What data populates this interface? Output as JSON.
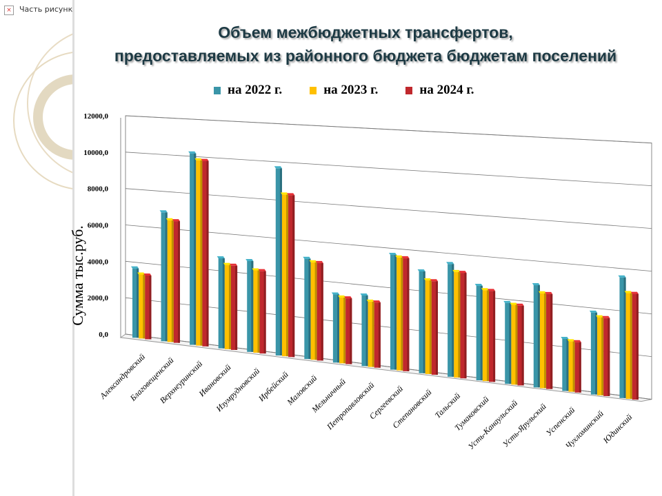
{
  "left_panel": {
    "broken_image_text": "Часть рисунка с",
    "broken_icon": "broken-image-icon"
  },
  "chart_data": {
    "type": "bar",
    "title_line1": "Объем межбюджетных трансфертов,",
    "title_line2": "предоставляемых из районного бюджета  бюджетам поселений",
    "ylabel": "Сумма  тыс.руб.",
    "xlabel": "",
    "ylim": [
      0,
      12000
    ],
    "yticks": [
      "0,0",
      "2000,0",
      "4000,0",
      "6000,0",
      "8000,0",
      "10000,0",
      "12000,0"
    ],
    "grid": true,
    "legend_position": "top",
    "categories": [
      "Александровский",
      "Благовещенский",
      "Верхнеуринский",
      "Ивановский",
      "Изумрудновский",
      "Ирбейский",
      "Маловский",
      "Мельничный",
      "Петропавловский",
      "Сергеевский",
      "Степановский",
      "Тальский",
      "Тумаковский",
      "Усть-Канаульский",
      "Усть-Ярульский",
      "Успенский",
      "Чухломинский",
      "Юдинский"
    ],
    "series": [
      {
        "name": "на 2022 г.",
        "color": "#3a95a8",
        "values": [
          3800,
          7000,
          10300,
          4800,
          4800,
          9800,
          5200,
          3500,
          3600,
          5800,
          5100,
          5600,
          4650,
          3950,
          4950,
          2500,
          3900,
          5700
        ]
      },
      {
        "name": "на 2023 г.",
        "color": "#ffc000",
        "values": [
          3500,
          6600,
          9950,
          4480,
          4340,
          8450,
          5050,
          3380,
          3320,
          5700,
          4680,
          5230,
          4470,
          3890,
          4590,
          2420,
          3710,
          4990
        ]
      },
      {
        "name": "на 2024 г.",
        "color": "#c0282d",
        "values": [
          3480,
          6580,
          9940,
          4470,
          4330,
          8440,
          5040,
          3370,
          3310,
          5690,
          4670,
          5220,
          4460,
          3880,
          4580,
          2410,
          3700,
          4980
        ]
      }
    ]
  }
}
